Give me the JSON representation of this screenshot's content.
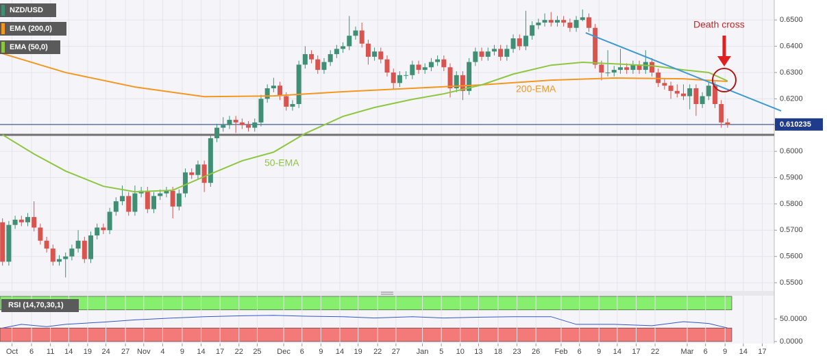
{
  "chart_data": [
    {
      "type": "candlestick",
      "name": "NZD/USD",
      "up_color": "#3f8f74",
      "down_color": "#d9534f",
      "xlim": [
        -0.4,
        122.4
      ],
      "ylim": [
        0.5469,
        0.6576
      ],
      "yticks": [
        {
          "value": 0.55,
          "label": "0.5500"
        },
        {
          "value": 0.56,
          "label": "0.5600"
        },
        {
          "value": 0.57,
          "label": "0.5700"
        },
        {
          "value": 0.58,
          "label": "0.5800"
        },
        {
          "value": 0.59,
          "label": "0.5900"
        },
        {
          "value": 0.6,
          "label": "0.6000"
        },
        {
          "value": 0.61,
          "label": "0.6100"
        },
        {
          "value": 0.62,
          "label": "0.6200"
        },
        {
          "value": 0.63,
          "label": "0.6300"
        },
        {
          "value": 0.64,
          "label": "0.6400"
        },
        {
          "value": 0.65,
          "label": "0.6500"
        }
      ],
      "grid": true,
      "last_price": 0.610235,
      "last_price_color": "#1f3b8c",
      "support": 0.6063,
      "support_color": "#707070",
      "candles": [
        [
          0.573,
          0.5745,
          0.5565,
          0.558
        ],
        [
          0.558,
          0.5735,
          0.5565,
          0.572
        ],
        [
          0.572,
          0.5755,
          0.5705,
          0.574
        ],
        [
          0.574,
          0.5755,
          0.5715,
          0.573
        ],
        [
          0.573,
          0.5765,
          0.5715,
          0.575
        ],
        [
          0.575,
          0.581,
          0.5695,
          0.571
        ],
        [
          0.571,
          0.5725,
          0.5645,
          0.566
        ],
        [
          0.566,
          0.5675,
          0.5615,
          0.563
        ],
        [
          0.563,
          0.5645,
          0.5565,
          0.558
        ],
        [
          0.558,
          0.5605,
          0.5565,
          0.559
        ],
        [
          0.559,
          0.5615,
          0.552,
          0.56
        ],
        [
          0.56,
          0.5645,
          0.5585,
          0.563
        ],
        [
          0.563,
          0.57,
          0.5615,
          0.566
        ],
        [
          0.566,
          0.5675,
          0.5575,
          0.559
        ],
        [
          0.559,
          0.5695,
          0.5575,
          0.568
        ],
        [
          0.568,
          0.5725,
          0.5665,
          0.571
        ],
        [
          0.571,
          0.5725,
          0.5685,
          0.57
        ],
        [
          0.57,
          0.5785,
          0.5685,
          0.577
        ],
        [
          0.577,
          0.5825,
          0.5755,
          0.581
        ],
        [
          0.581,
          0.587,
          0.5795,
          0.583
        ],
        [
          0.583,
          0.5845,
          0.5755,
          0.577
        ],
        [
          0.577,
          0.587,
          0.5755,
          0.584
        ],
        [
          0.584,
          0.5865,
          0.5825,
          0.585
        ],
        [
          0.585,
          0.5865,
          0.5765,
          0.578
        ],
        [
          0.578,
          0.5845,
          0.5765,
          0.583
        ],
        [
          0.583,
          0.5855,
          0.5815,
          0.584
        ],
        [
          0.584,
          0.5865,
          0.5825,
          0.585
        ],
        [
          0.585,
          0.5865,
          0.5745,
          0.579
        ],
        [
          0.579,
          0.5855,
          0.5775,
          0.584
        ],
        [
          0.584,
          0.5935,
          0.5825,
          0.592
        ],
        [
          0.592,
          0.5935,
          0.5895,
          0.591
        ],
        [
          0.591,
          0.5965,
          0.5895,
          0.595
        ],
        [
          0.595,
          0.5965,
          0.5845,
          0.588
        ],
        [
          0.588,
          0.6065,
          0.5865,
          0.605
        ],
        [
          0.605,
          0.6105,
          0.6035,
          0.609
        ],
        [
          0.609,
          0.613,
          0.6075,
          0.61
        ],
        [
          0.61,
          0.6135,
          0.6085,
          0.612
        ],
        [
          0.612,
          0.6135,
          0.607,
          0.611
        ],
        [
          0.611,
          0.6125,
          0.6085,
          0.61
        ],
        [
          0.61,
          0.6115,
          0.6075,
          0.609
        ],
        [
          0.609,
          0.6125,
          0.6075,
          0.611
        ],
        [
          0.611,
          0.6215,
          0.6095,
          0.62
        ],
        [
          0.62,
          0.6255,
          0.6185,
          0.624
        ],
        [
          0.624,
          0.628,
          0.6225,
          0.625
        ],
        [
          0.625,
          0.6265,
          0.6195,
          0.621
        ],
        [
          0.621,
          0.6225,
          0.6155,
          0.617
        ],
        [
          0.617,
          0.6195,
          0.6155,
          0.618
        ],
        [
          0.618,
          0.6345,
          0.6165,
          0.633
        ],
        [
          0.633,
          0.64,
          0.6315,
          0.637
        ],
        [
          0.637,
          0.6385,
          0.6335,
          0.635
        ],
        [
          0.635,
          0.6365,
          0.6295,
          0.631
        ],
        [
          0.631,
          0.6355,
          0.6295,
          0.634
        ],
        [
          0.634,
          0.6385,
          0.6325,
          0.637
        ],
        [
          0.637,
          0.6405,
          0.6355,
          0.639
        ],
        [
          0.639,
          0.6415,
          0.6375,
          0.64
        ],
        [
          0.64,
          0.6515,
          0.6385,
          0.644
        ],
        [
          0.644,
          0.6475,
          0.6425,
          0.646
        ],
        [
          0.646,
          0.649,
          0.6395,
          0.641
        ],
        [
          0.641,
          0.6425,
          0.633,
          0.636
        ],
        [
          0.636,
          0.6395,
          0.6345,
          0.638
        ],
        [
          0.638,
          0.6395,
          0.6335,
          0.635
        ],
        [
          0.635,
          0.6365,
          0.6285,
          0.63
        ],
        [
          0.63,
          0.6315,
          0.6235,
          0.626
        ],
        [
          0.626,
          0.6305,
          0.6245,
          0.629
        ],
        [
          0.629,
          0.6305,
          0.6275,
          0.629
        ],
        [
          0.629,
          0.6345,
          0.6275,
          0.633
        ],
        [
          0.633,
          0.6345,
          0.6295,
          0.631
        ],
        [
          0.631,
          0.6335,
          0.6295,
          0.632
        ],
        [
          0.632,
          0.6355,
          0.6305,
          0.634
        ],
        [
          0.634,
          0.6365,
          0.6325,
          0.635
        ],
        [
          0.635,
          0.6365,
          0.6305,
          0.632
        ],
        [
          0.632,
          0.6335,
          0.6205,
          0.624
        ],
        [
          0.624,
          0.6305,
          0.6225,
          0.629
        ],
        [
          0.629,
          0.6305,
          0.6195,
          0.623
        ],
        [
          0.623,
          0.6355,
          0.6215,
          0.634
        ],
        [
          0.634,
          0.6395,
          0.6325,
          0.638
        ],
        [
          0.638,
          0.6395,
          0.6345,
          0.636
        ],
        [
          0.636,
          0.6395,
          0.6345,
          0.638
        ],
        [
          0.638,
          0.6405,
          0.6365,
          0.639
        ],
        [
          0.639,
          0.6405,
          0.6345,
          0.636
        ],
        [
          0.636,
          0.6405,
          0.6345,
          0.639
        ],
        [
          0.639,
          0.6445,
          0.6375,
          0.643
        ],
        [
          0.643,
          0.6445,
          0.6385,
          0.64
        ],
        [
          0.64,
          0.6535,
          0.6385,
          0.644
        ],
        [
          0.644,
          0.6495,
          0.6425,
          0.648
        ],
        [
          0.648,
          0.6505,
          0.6465,
          0.649
        ],
        [
          0.649,
          0.6525,
          0.6475,
          0.65
        ],
        [
          0.65,
          0.653,
          0.6475,
          0.649
        ],
        [
          0.649,
          0.6515,
          0.6475,
          0.65
        ],
        [
          0.65,
          0.6515,
          0.6475,
          0.649
        ],
        [
          0.649,
          0.6505,
          0.6455,
          0.647
        ],
        [
          0.647,
          0.6515,
          0.6455,
          0.65
        ],
        [
          0.65,
          0.654,
          0.6495,
          0.651
        ],
        [
          0.651,
          0.6525,
          0.6455,
          0.647
        ],
        [
          0.647,
          0.6485,
          0.6315,
          0.633
        ],
        [
          0.633,
          0.6345,
          0.627,
          0.63
        ],
        [
          0.63,
          0.6385,
          0.6285,
          0.63
        ],
        [
          0.63,
          0.6325,
          0.6285,
          0.631
        ],
        [
          0.631,
          0.639,
          0.6295,
          0.632
        ],
        [
          0.632,
          0.6335,
          0.6295,
          0.631
        ],
        [
          0.631,
          0.6345,
          0.6295,
          0.633
        ],
        [
          0.633,
          0.6345,
          0.6295,
          0.631
        ],
        [
          0.631,
          0.6385,
          0.6295,
          0.634
        ],
        [
          0.634,
          0.6355,
          0.6285,
          0.63
        ],
        [
          0.63,
          0.6315,
          0.6245,
          0.626
        ],
        [
          0.626,
          0.6275,
          0.6235,
          0.625
        ],
        [
          0.625,
          0.6265,
          0.62,
          0.623
        ],
        [
          0.623,
          0.6255,
          0.6205,
          0.622
        ],
        [
          0.622,
          0.6255,
          0.6195,
          0.621
        ],
        [
          0.621,
          0.6255,
          0.616,
          0.624
        ],
        [
          0.624,
          0.6255,
          0.6135,
          0.618
        ],
        [
          0.618,
          0.6225,
          0.6165,
          0.621
        ],
        [
          0.621,
          0.6265,
          0.6195,
          0.625
        ],
        [
          0.625,
          0.6265,
          0.6165,
          0.618
        ],
        [
          0.618,
          0.6195,
          0.609,
          0.611
        ],
        [
          0.611,
          0.6125,
          0.609,
          0.6102
        ]
      ],
      "lines": [
        {
          "name": "EMA (200,0)",
          "color": "#f5961e",
          "x": [
            0,
            10,
            21,
            32,
            43,
            54,
            65,
            76,
            87,
            97,
            108,
            115
          ],
          "values": [
            0.6372,
            0.63,
            0.6245,
            0.6208,
            0.6211,
            0.6227,
            0.624,
            0.6253,
            0.6271,
            0.6279,
            0.6276,
            0.6266
          ]
        },
        {
          "name": "EMA (50,0)",
          "color": "#8dc63f",
          "x": [
            0,
            5,
            10,
            16,
            21,
            27,
            32,
            38,
            43,
            48,
            54,
            59,
            65,
            70,
            76,
            81,
            87,
            92,
            97,
            103,
            108,
            112,
            115
          ],
          "values": [
            0.6063,
            0.599,
            0.5925,
            0.5867,
            0.5846,
            0.5852,
            0.5904,
            0.5964,
            0.5997,
            0.6068,
            0.6133,
            0.6167,
            0.6198,
            0.6219,
            0.6253,
            0.6294,
            0.6328,
            0.6339,
            0.6333,
            0.6326,
            0.631,
            0.63,
            0.6268
          ]
        }
      ],
      "trendline": {
        "color": "#3d9ad6",
        "x": [
          92.5,
          123.5
        ],
        "values": [
          0.6451,
          0.6154
        ]
      },
      "annotations": [
        "Death cross",
        "200-EMA",
        "50-EMA"
      ]
    },
    {
      "type": "line",
      "title": "RSI (14,70,30,1)",
      "color": "#3355cc",
      "x": [
        0,
        3,
        7,
        10,
        16,
        21,
        27,
        32,
        38,
        43,
        48,
        54,
        59,
        65,
        70,
        76,
        81,
        87,
        91,
        97,
        103,
        108,
        112,
        115
      ],
      "values": [
        30,
        38,
        33,
        38,
        43,
        48,
        52,
        55,
        57,
        58,
        56,
        55,
        52,
        55,
        52,
        54,
        55,
        55,
        38,
        38,
        35,
        44,
        40,
        30
      ],
      "bands": [
        {
          "range": [
            70,
            100
          ],
          "color": "#86ef6e"
        },
        {
          "range": [
            0,
            30
          ],
          "color": "#f47a7a"
        }
      ],
      "xlim": [
        -0.4,
        122.4
      ],
      "ylim": [
        0,
        100
      ],
      "yticks": [
        {
          "value": 50,
          "label": "50.0000"
        },
        {
          "value": 0,
          "label": "0.0000"
        }
      ],
      "xticks": [
        {
          "value": 1.5,
          "label": "Oct"
        },
        {
          "value": 4.6,
          "label": "6"
        },
        {
          "value": 7.6,
          "label": "11"
        },
        {
          "value": 10.5,
          "label": "14"
        },
        {
          "value": 13.5,
          "label": "19"
        },
        {
          "value": 16.4,
          "label": "24"
        },
        {
          "value": 19.5,
          "label": "27"
        },
        {
          "value": 22.4,
          "label": "Nov"
        },
        {
          "value": 25.4,
          "label": "4"
        },
        {
          "value": 28.5,
          "label": "9"
        },
        {
          "value": 31.5,
          "label": "14"
        },
        {
          "value": 34.5,
          "label": "17"
        },
        {
          "value": 37.5,
          "label": "22"
        },
        {
          "value": 40.4,
          "label": "25"
        },
        {
          "value": 44.6,
          "label": "Dec"
        },
        {
          "value": 47.5,
          "label": "6"
        },
        {
          "value": 50.5,
          "label": "9"
        },
        {
          "value": 53.5,
          "label": "14"
        },
        {
          "value": 56.4,
          "label": "19"
        },
        {
          "value": 59.5,
          "label": "22"
        },
        {
          "value": 62.4,
          "label": "27"
        },
        {
          "value": 66.6,
          "label": "Jan"
        },
        {
          "value": 69.6,
          "label": "5"
        },
        {
          "value": 72.6,
          "label": "10"
        },
        {
          "value": 75.5,
          "label": "13"
        },
        {
          "value": 78.6,
          "label": "18"
        },
        {
          "value": 81.6,
          "label": "23"
        },
        {
          "value": 84.6,
          "label": "26"
        },
        {
          "value": 88.6,
          "label": "Feb"
        },
        {
          "value": 91.5,
          "label": "6"
        },
        {
          "value": 94.6,
          "label": "9"
        },
        {
          "value": 97.5,
          "label": "14"
        },
        {
          "value": 100.5,
          "label": "17"
        },
        {
          "value": 103.5,
          "label": "22"
        },
        {
          "value": 108.6,
          "label": "Mar"
        },
        {
          "value": 111.5,
          "label": "6"
        },
        {
          "value": 114.6,
          "label": "9"
        },
        {
          "value": 117.5,
          "label": "14"
        },
        {
          "value": 120.5,
          "label": "17"
        }
      ]
    }
  ]
}
